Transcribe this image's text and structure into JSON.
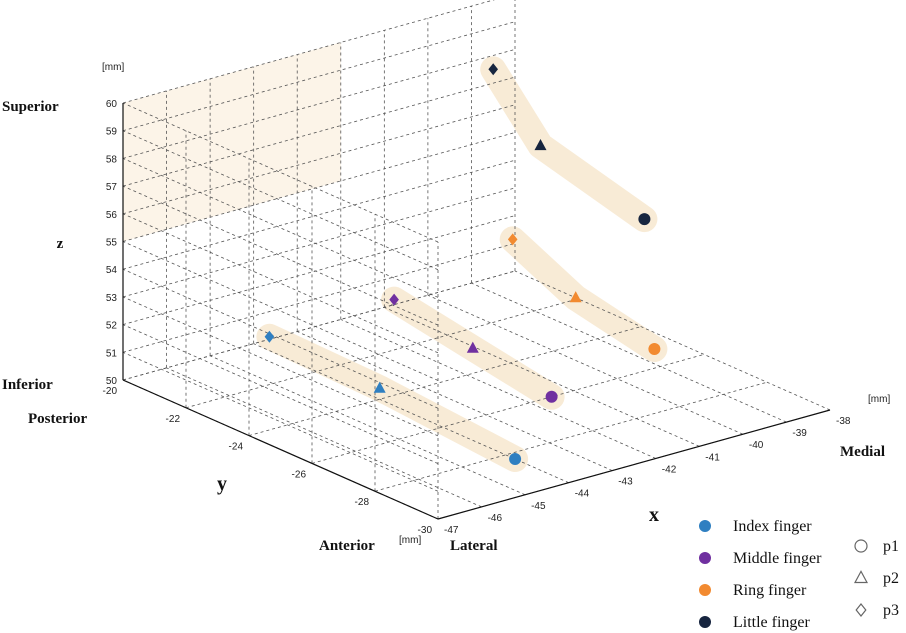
{
  "chart_data": {
    "type": "scatter",
    "dimensions": 3,
    "axes": {
      "x": {
        "label": "x",
        "unit": "[mm]",
        "range": [
          -47,
          -38
        ],
        "ticks": [
          -47,
          -46,
          -45,
          -44,
          -43,
          -42,
          -41,
          -40,
          -39,
          -38
        ],
        "end_labels": {
          "min": "Lateral",
          "max": "Medial"
        }
      },
      "y": {
        "label": "y",
        "unit": "[mm]",
        "range": [
          -30,
          -20
        ],
        "ticks": [
          -30,
          -28,
          -26,
          -24,
          -22,
          -20
        ],
        "end_labels": {
          "min": "Anterior",
          "max": "Posterior"
        }
      },
      "z": {
        "label": "z",
        "unit": "[mm]",
        "range": [
          50,
          60
        ],
        "ticks": [
          50,
          51,
          52,
          53,
          54,
          55,
          56,
          57,
          58,
          59,
          60
        ],
        "end_labels": {
          "min": "Inferior",
          "max": "Superior"
        }
      }
    },
    "grid": true,
    "series": [
      {
        "name": "Index finger",
        "color": "#2f7fc1",
        "points": [
          {
            "marker": "p1",
            "x": -44.0,
            "y": -28.3,
            "z": 50.0
          },
          {
            "marker": "p2",
            "x": -44.0,
            "y": -24.0,
            "z": 50.4
          },
          {
            "marker": "p3",
            "x": -44.0,
            "y": -20.5,
            "z": 50.5
          }
        ]
      },
      {
        "name": "Middle finger",
        "color": "#7030a0",
        "points": [
          {
            "marker": "p1",
            "x": -41.5,
            "y": -26.0,
            "z": 50.0
          },
          {
            "marker": "p2",
            "x": -41.5,
            "y": -23.5,
            "z": 50.5
          },
          {
            "marker": "p3",
            "x": -41.5,
            "y": -21.0,
            "z": 51.0
          }
        ]
      },
      {
        "name": "Ring finger",
        "color": "#f28a30",
        "points": [
          {
            "marker": "p1",
            "x": -39.5,
            "y": -26.5,
            "z": 51.1
          },
          {
            "marker": "p2",
            "x": -39.5,
            "y": -24.0,
            "z": 51.7
          },
          {
            "marker": "p3",
            "x": -39.5,
            "y": -22.0,
            "z": 52.8
          }
        ]
      },
      {
        "name": "Little finger",
        "color": "#17253f",
        "points": [
          {
            "marker": "p1",
            "x": -38.5,
            "y": -24.8,
            "z": 54.5
          },
          {
            "marker": "p2",
            "x": -38.5,
            "y": -21.5,
            "z": 55.5
          },
          {
            "marker": "p3",
            "x": -38.5,
            "y": -20.0,
            "z": 57.5
          }
        ]
      }
    ],
    "markers": [
      {
        "id": "p1",
        "label": "p1",
        "shape": "circle"
      },
      {
        "id": "p2",
        "label": "p2",
        "shape": "triangle"
      },
      {
        "id": "p3",
        "label": "p3",
        "shape": "diamond"
      }
    ],
    "legend_position": "bottom-right"
  }
}
